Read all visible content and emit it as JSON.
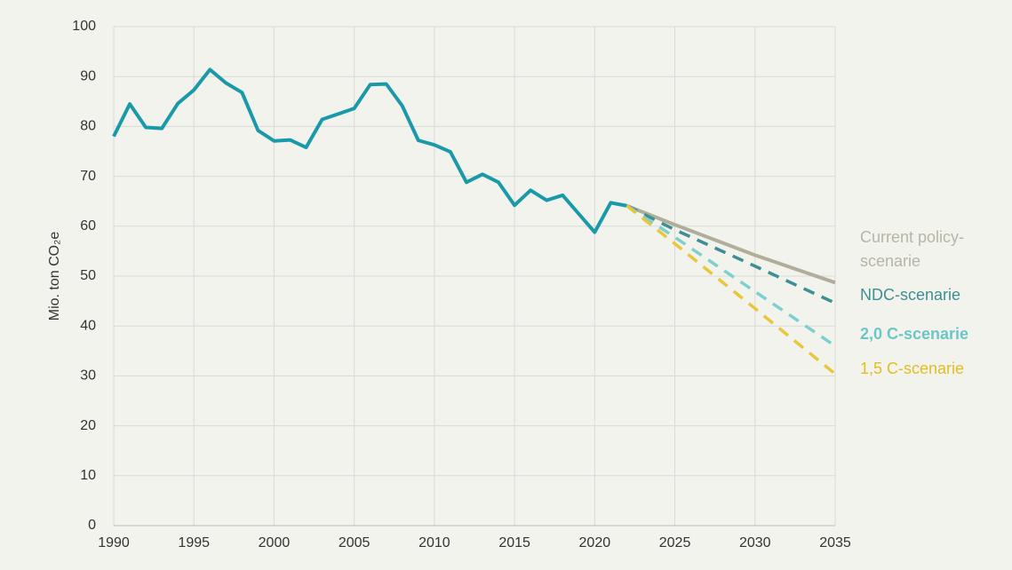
{
  "chart_data": {
    "type": "line",
    "y_label": "Mio. ton CO₂e",
    "xlim": [
      1990,
      2035
    ],
    "xticks": [
      1990,
      1995,
      2000,
      2005,
      2010,
      2015,
      2020,
      2025,
      2030,
      2035
    ],
    "ylim": [
      0,
      100
    ],
    "yticks": [
      0,
      10,
      20,
      30,
      40,
      50,
      60,
      70,
      80,
      90,
      100
    ],
    "grid": true,
    "series": [
      {
        "color": "#1a9aa8",
        "dashed": false,
        "x": [
          1990,
          1991,
          1992,
          1993,
          1994,
          1995,
          1996,
          1997,
          1998,
          1999,
          2000,
          2001,
          2002,
          2003,
          2004,
          2005,
          2006,
          2007,
          2008,
          2009,
          2010,
          2011,
          2012,
          2013,
          2014,
          2015,
          2016,
          2017,
          2018,
          2019,
          2020,
          2021,
          2022
        ],
        "values": [
          78,
          84.5,
          79.8,
          79.6,
          84.6,
          87.3,
          91.4,
          88.7,
          86.8,
          79.2,
          77.1,
          77.3,
          75.8,
          81.4,
          82.5,
          83.6,
          88.4,
          88.5,
          84.1,
          77.2,
          76.3,
          74.9,
          68.8,
          70.4,
          68.8,
          64.2,
          67.2,
          65.2,
          66.2,
          62.5,
          58.8,
          64.7,
          64.1
        ]
      },
      {
        "name": [
          "Current policy-",
          "scenarie"
        ],
        "color": "#b0ae99",
        "label_color": "#b7b5a5",
        "dashed": false,
        "label_bold": false,
        "x": [
          2022,
          2025,
          2030,
          2035
        ],
        "values": [
          64.1,
          60.3,
          54.2,
          48.7
        ]
      },
      {
        "name": [
          "NDC-scenarie"
        ],
        "color": "#3d8f94",
        "label_color": "#3d8f94",
        "dashed": true,
        "label_bold": false,
        "x": [
          2022,
          2025,
          2030,
          2035
        ],
        "values": [
          64.1,
          59.3,
          52,
          44.6
        ]
      },
      {
        "name": [
          "2,0 C-scenarie"
        ],
        "color": "#7ecfd0",
        "label_color": "#6cc6c8",
        "dashed": true,
        "label_bold": true,
        "x": [
          2022,
          2025,
          2030,
          2035
        ],
        "values": [
          64.1,
          57.8,
          46.9,
          36
        ]
      },
      {
        "name": [
          "1,5 C-scenarie"
        ],
        "color": "#e8c73a",
        "label_color": "#e3bd22",
        "dashed": true,
        "label_bold": false,
        "x": [
          2022,
          2025,
          2030,
          2035
        ],
        "values": [
          64.1,
          56.5,
          43.5,
          30.4
        ]
      }
    ]
  }
}
